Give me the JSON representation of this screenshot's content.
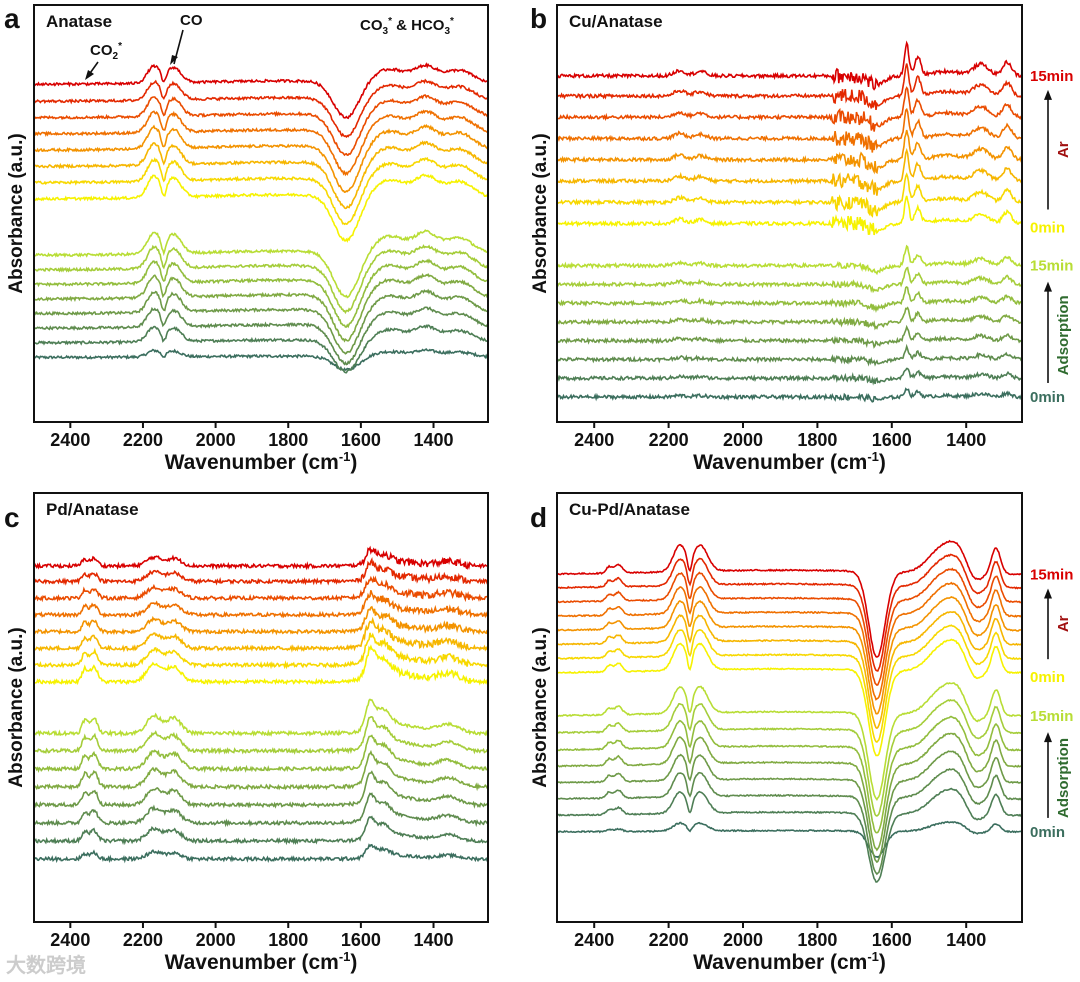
{
  "watermark": "大数跨境",
  "chart_data": {
    "type": "line",
    "x_unit": "cm-1",
    "groups": [
      {
        "name": "Adsorption",
        "time_start": "0min",
        "time_end": "15min",
        "label_color": "#2f6b2f",
        "colors": [
          "#3b6e5e",
          "#4e7e55",
          "#5f8c4e",
          "#6e9a48",
          "#80aa42",
          "#92bd3d",
          "#a5cd3a",
          "#b8dd35"
        ]
      },
      {
        "name": "Ar",
        "time_start": "0min",
        "time_end": "15min",
        "label_color": "#a01010",
        "colors": [
          "#f6f200",
          "#f7d800",
          "#f6b600",
          "#f39300",
          "#ef7000",
          "#ea4c00",
          "#e32800",
          "#d80000"
        ]
      }
    ],
    "panels": [
      {
        "letter": "a",
        "title": "Anatase",
        "xlabel": "Wavenumber (cm-1)",
        "ylabel": "Absorbance (a.u.)",
        "xlim": [
          2500,
          1250
        ],
        "xticks": [
          2400,
          2200,
          2000,
          1800,
          1600,
          1400
        ],
        "ylim": [
          0,
          1
        ],
        "side_labels": false,
        "annotations": [
          {
            "text": "CO",
            "sub": "",
            "sup": "",
            "target_x": 2125
          },
          {
            "text": "CO",
            "sub": "2",
            "sup": "*",
            "target_x": 2380
          },
          {
            "text": "CO",
            "sub": "3",
            "sup": "*",
            "text2": " & HCO",
            "sub2": "3",
            "sup2": "*",
            "target_x": 1450
          }
        ],
        "peaks": [
          [
            2170,
            18,
            0.05
          ],
          [
            2115,
            20,
            0.045
          ],
          [
            2143,
            6,
            -0.03
          ],
          [
            1640,
            35,
            -0.11
          ],
          [
            1520,
            50,
            0.04
          ],
          [
            1420,
            30,
            0.045
          ],
          [
            1330,
            40,
            0.04
          ],
          [
            1800,
            250,
            0.01
          ]
        ],
        "noise_level": 0.003,
        "noise_region": null,
        "adsorption": {
          "offsets": [
            0.155,
            0.19,
            0.225,
            0.26,
            0.295,
            0.33,
            0.365,
            0.4
          ],
          "scales": [
            0.3,
            0.7,
            0.85,
            0.95,
            1,
            1,
            1,
            1
          ]
        },
        "ar": {
          "offsets": [
            0.535,
            0.574,
            0.613,
            0.652,
            0.691,
            0.73,
            0.769,
            0.81
          ],
          "scales": [
            1,
            1,
            1,
            1,
            0.95,
            0.9,
            0.85,
            0.8
          ]
        }
      },
      {
        "letter": "b",
        "title": "Cu/Anatase",
        "xlabel": "Wavenumber (cm-1)",
        "ylabel": "Absorbance (a.u.)",
        "xlim": [
          2500,
          1250
        ],
        "xticks": [
          2400,
          2200,
          2000,
          1800,
          1600,
          1400
        ],
        "ylim": [
          0,
          1
        ],
        "side_labels": true,
        "annotations": [],
        "peaks": [
          [
            2170,
            15,
            0.012
          ],
          [
            2115,
            15,
            0.01
          ],
          [
            1560,
            6,
            0.07
          ],
          [
            1530,
            8,
            0.04
          ],
          [
            1640,
            20,
            -0.02
          ],
          [
            1360,
            20,
            0.025
          ],
          [
            1290,
            12,
            0.03
          ],
          [
            1450,
            40,
            0.01
          ]
        ],
        "noise_level": 0.004,
        "noise_region": [
          1760,
          1640,
          0.018
        ],
        "adsorption": {
          "offsets": [
            0.06,
            0.105,
            0.15,
            0.195,
            0.24,
            0.285,
            0.33,
            0.375
          ],
          "scales": [
            0.3,
            0.35,
            0.4,
            0.45,
            0.5,
            0.55,
            0.6,
            0.65
          ]
        },
        "ar": {
          "offsets": [
            0.476,
            0.527,
            0.578,
            0.629,
            0.68,
            0.731,
            0.782,
            0.83
          ],
          "scales": [
            0.9,
            0.95,
            1,
            1,
            1,
            1,
            1.05,
            1.1
          ]
        }
      },
      {
        "letter": "c",
        "title": "Pd/Anatase",
        "xlabel": "Wavenumber (cm-1)",
        "ylabel": "Absorbance (a.u.)",
        "xlim": [
          2500,
          1250
        ],
        "xticks": [
          2400,
          2200,
          2000,
          1800,
          1600,
          1400
        ],
        "ylim": [
          0,
          1
        ],
        "side_labels": false,
        "annotations": [],
        "peaks": [
          [
            2360,
            8,
            0.03
          ],
          [
            2335,
            10,
            0.035
          ],
          [
            2170,
            20,
            0.04
          ],
          [
            2115,
            20,
            0.035
          ],
          [
            1575,
            12,
            0.06
          ],
          [
            1540,
            20,
            0.04
          ],
          [
            1360,
            30,
            0.02
          ],
          [
            1500,
            60,
            0.02
          ]
        ],
        "noise_level": 0.004,
        "noise_region": [
          1600,
          1300,
          0.008
        ],
        "adsorption": {
          "offsets": [
            0.147,
            0.189,
            0.231,
            0.273,
            0.315,
            0.357,
            0.399,
            0.44
          ],
          "scales": [
            0.4,
            0.7,
            0.85,
            0.95,
            1,
            1,
            1,
            1
          ]
        },
        "ar": {
          "offsets": [
            0.56,
            0.599,
            0.638,
            0.677,
            0.716,
            0.755,
            0.794,
            0.83
          ],
          "scales": [
            1,
            0.9,
            0.8,
            0.7,
            0.65,
            0.6,
            0.55,
            0.5
          ]
        }
      },
      {
        "letter": "d",
        "title": "Cu-Pd/Anatase",
        "xlabel": "Wavenumber (cm-1)",
        "ylabel": "Absorbance (a.u.)",
        "xlim": [
          2500,
          1250
        ],
        "xticks": [
          2400,
          2200,
          2000,
          1800,
          1600,
          1400
        ],
        "ylim": [
          0,
          1
        ],
        "side_labels": true,
        "annotations": [],
        "peaks": [
          [
            2360,
            8,
            0.015
          ],
          [
            2335,
            10,
            0.02
          ],
          [
            2170,
            18,
            0.06
          ],
          [
            2115,
            20,
            0.06
          ],
          [
            2143,
            6,
            -0.04
          ],
          [
            1640,
            22,
            -0.2
          ],
          [
            1470,
            35,
            0.05
          ],
          [
            1420,
            30,
            0.05
          ],
          [
            1320,
            12,
            0.06
          ],
          [
            1380,
            20,
            -0.03
          ],
          [
            1900,
            300,
            0.01
          ]
        ],
        "noise_level": 0.0015,
        "noise_region": null,
        "adsorption": {
          "offsets": [
            0.21,
            0.248,
            0.286,
            0.324,
            0.362,
            0.4,
            0.44,
            0.48
          ],
          "scales": [
            0.3,
            0.8,
            0.9,
            0.95,
            1,
            1,
            1,
            1
          ]
        },
        "ar": {
          "offsets": [
            0.58,
            0.613,
            0.646,
            0.679,
            0.712,
            0.745,
            0.778,
            0.81
          ],
          "scales": [
            1,
            1,
            1,
            1,
            1,
            1,
            1,
            1
          ]
        }
      }
    ]
  }
}
